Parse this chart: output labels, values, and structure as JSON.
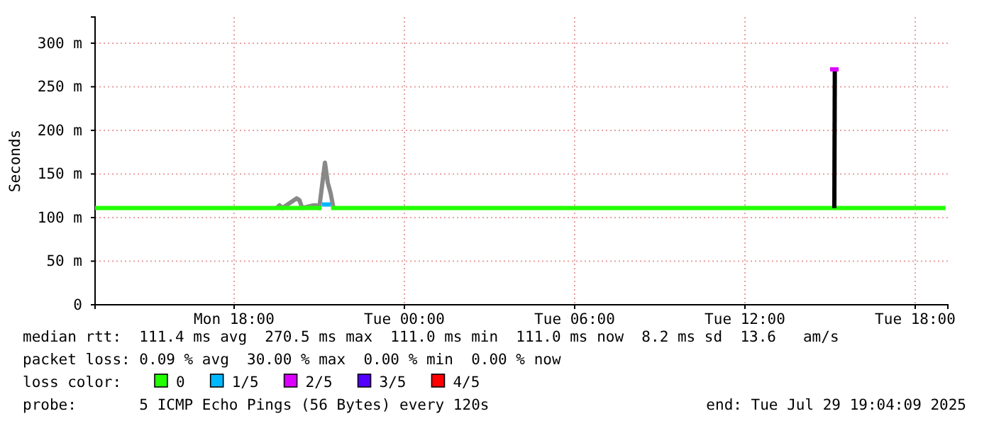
{
  "chart_data": {
    "type": "line",
    "ylabel": "Seconds",
    "x": [
      "2025-07-28T13:06",
      "2025-07-28T21:05",
      "2025-07-28T21:10",
      "2025-07-28T21:25",
      "2025-07-29T19:04"
    ],
    "xlim": [
      "2025-07-28T13:06",
      "2025-07-29T19:09"
    ],
    "xticks": [
      {
        "value": "2025-07-28T18:00",
        "label": "Mon 18:00"
      },
      {
        "value": "2025-07-29T00:00",
        "label": "Tue 00:00"
      },
      {
        "value": "2025-07-29T06:00",
        "label": "Tue 06:00"
      },
      {
        "value": "2025-07-29T12:00",
        "label": "Tue 12:00"
      },
      {
        "value": "2025-07-29T18:00",
        "label": "Tue 18:00"
      }
    ],
    "ylim": [
      0,
      330
    ],
    "yticks": [
      0,
      {
        "value": 50,
        "label": "50 m"
      },
      {
        "value": 100,
        "label": "100 m"
      },
      {
        "value": 150,
        "label": "150 m"
      },
      {
        "value": 200,
        "label": "200 m"
      },
      {
        "value": 250,
        "label": "250 m"
      },
      {
        "value": 300,
        "label": "300 m"
      }
    ],
    "grid": true,
    "legend": "bottom",
    "series": [
      {
        "color": "#888888",
        "x": [
          "2025-07-28T19:30",
          "2025-07-28T19:36",
          "2025-07-28T19:42",
          "2025-07-28T20:12",
          "2025-07-28T20:18",
          "2025-07-28T20:24",
          "2025-07-28T20:48",
          "2025-07-28T20:54",
          "2025-07-28T21:00",
          "2025-07-28T21:12",
          "2025-07-28T21:18",
          "2025-07-28T21:24",
          "2025-07-28T21:30"
        ],
        "values": [
          111,
          114,
          111,
          122,
          120,
          111,
          114,
          114,
          111,
          163,
          140,
          128,
          111
        ]
      },
      {
        "name": "0",
        "color": "#22ff00",
        "values": [
          111,
          111,
          null,
          111,
          111
        ]
      },
      {
        "name": "1/5",
        "color": "#00b8ff",
        "x": [
          "2025-07-28T21:06",
          "2025-07-28T21:24"
        ],
        "values": [
          115,
          115
        ]
      },
      {
        "color": "#000000",
        "x": [
          "2025-07-29T15:09",
          "2025-07-29T15:10"
        ],
        "values": [
          111,
          270
        ]
      },
      {
        "name": "2/5",
        "color": "#dd00ff",
        "x": [
          "2025-07-29T15:00",
          "2025-07-29T15:18"
        ],
        "values": [
          270,
          270
        ]
      },
      {
        "name": "3/5",
        "color": "#5500ff",
        "values": [
          null,
          null,
          null,
          null,
          null
        ]
      },
      {
        "name": "4/5",
        "color": "#ff0000",
        "values": [
          null,
          null,
          null,
          null,
          null
        ]
      }
    ],
    "annotations": [
      "median rtt:  111.4 ms avg  270.5 ms max  111.0 ms min  111.0 ms now  8.2 ms sd  13.6   am/s",
      "packet loss: 0.09 % avg  30.00 % max  0.00 % min  0.00 % now",
      "loss color:",
      "probe:       5 ICMP Echo Pings (56 Bytes) every 120s",
      "end: Tue Jul 29 19:04:09 2025"
    ]
  }
}
